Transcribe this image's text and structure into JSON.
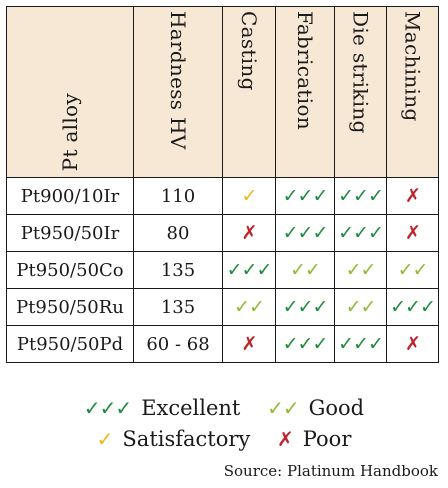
{
  "table": {
    "headers": [
      "Pt alloy",
      "Hardness HV",
      "Casting",
      "Fabrication",
      "Die striking",
      "Machining"
    ],
    "rows": [
      {
        "alloy": "Pt900/10Ir",
        "hardness": "110",
        "ratings": [
          "satisfactory",
          "excellent",
          "excellent",
          "poor"
        ]
      },
      {
        "alloy": "Pt950/50Ir",
        "hardness": "80",
        "ratings": [
          "poor",
          "excellent",
          "excellent",
          "poor"
        ]
      },
      {
        "alloy": "Pt950/50Co",
        "hardness": "135",
        "ratings": [
          "excellent",
          "good",
          "good",
          "good"
        ]
      },
      {
        "alloy": "Pt950/50Ru",
        "hardness": "135",
        "ratings": [
          "good",
          "excellent",
          "good",
          "excellent"
        ]
      },
      {
        "alloy": "Pt950/50Pd",
        "hardness": "60 - 68",
        "ratings": [
          "poor",
          "excellent",
          "excellent",
          "poor"
        ]
      }
    ]
  },
  "symbols": {
    "excellent": "✓✓✓",
    "good": "✓✓",
    "satisfactory": "✓",
    "poor": "✗"
  },
  "legend": {
    "excellent": "Excellent",
    "good": "Good",
    "satisfactory": "Satisfactory",
    "poor": "Poor"
  },
  "source": "Source: Platinum Handbook",
  "colors": {
    "header_bg": "#f7e7d5",
    "excellent": "#1f8a3c",
    "good": "#8fbb32",
    "satisfactory": "#f2b515",
    "poor": "#c0242b"
  }
}
